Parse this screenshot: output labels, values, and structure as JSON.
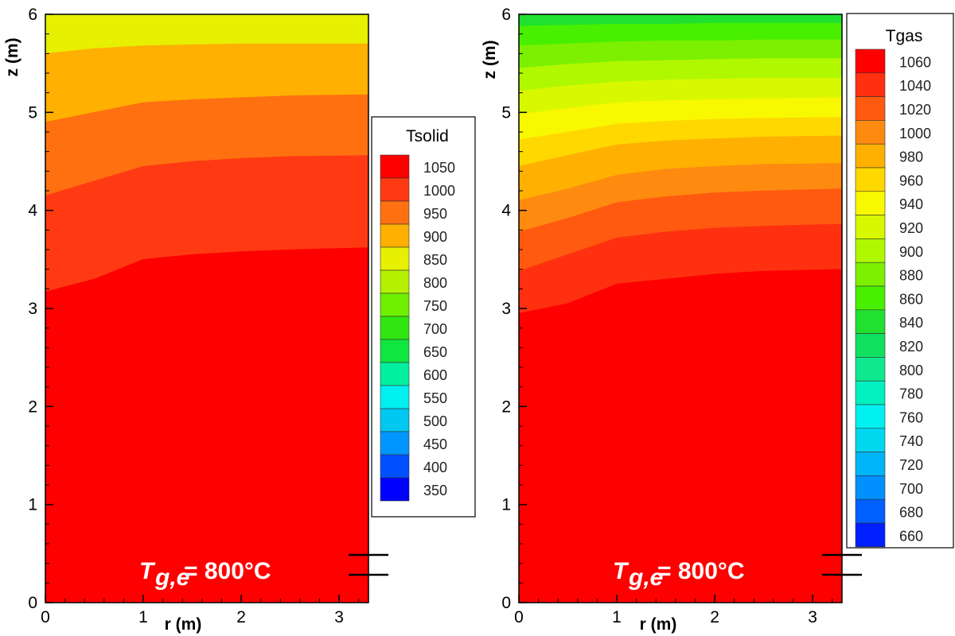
{
  "chart_data": [
    {
      "type": "heatmap",
      "title": "",
      "xlabel": "r (m)",
      "ylabel": "z (m)",
      "xlim": [
        0,
        3.3
      ],
      "ylim": [
        0,
        6
      ],
      "x_ticks": [
        "0",
        "1",
        "2",
        "3"
      ],
      "y_ticks": [
        "0",
        "1",
        "2",
        "3",
        "4",
        "5",
        "6"
      ],
      "legend_title": "Tsolid",
      "legend_placement": "right",
      "legend_levels": [
        1050,
        1000,
        950,
        900,
        850,
        800,
        750,
        700,
        650,
        600,
        550,
        500,
        450,
        400,
        350
      ],
      "legend_colors": [
        "#ff0000",
        "#ff3a12",
        "#ff7010",
        "#ffb000",
        "#e6f000",
        "#b4f000",
        "#6ef000",
        "#30e610",
        "#10e640",
        "#00f0a0",
        "#00f0f0",
        "#00c8f0",
        "#0096ff",
        "#0050ff",
        "#0000ff"
      ],
      "contour_bands": [
        {
          "color": "#ff0000",
          "label": "1050",
          "upper_boundary": [
            [
              0,
              3.17
            ],
            [
              0.5,
              3.3
            ],
            [
              1,
              3.5
            ],
            [
              1.5,
              3.55
            ],
            [
              2,
              3.58
            ],
            [
              2.5,
              3.6
            ],
            [
              3.3,
              3.62
            ]
          ]
        },
        {
          "color": "#ff3a12",
          "label": "1000",
          "upper_boundary": [
            [
              0,
              4.15
            ],
            [
              0.5,
              4.3
            ],
            [
              1,
              4.45
            ],
            [
              1.5,
              4.5
            ],
            [
              2,
              4.53
            ],
            [
              2.5,
              4.55
            ],
            [
              3.3,
              4.56
            ]
          ]
        },
        {
          "color": "#ff7010",
          "label": "950",
          "upper_boundary": [
            [
              0,
              4.9
            ],
            [
              0.5,
              5.0
            ],
            [
              1,
              5.1
            ],
            [
              1.5,
              5.13
            ],
            [
              2,
              5.15
            ],
            [
              2.5,
              5.17
            ],
            [
              3.3,
              5.18
            ]
          ]
        },
        {
          "color": "#ffb000",
          "label": "900",
          "upper_boundary": [
            [
              0,
              5.6
            ],
            [
              0.5,
              5.65
            ],
            [
              1,
              5.68
            ],
            [
              1.5,
              5.69
            ],
            [
              2,
              5.7
            ],
            [
              2.5,
              5.7
            ],
            [
              3.3,
              5.7
            ]
          ]
        },
        {
          "color": "#e6f000",
          "label": "850",
          "upper_boundary": [
            [
              0,
              6
            ],
            [
              3.3,
              6
            ]
          ]
        }
      ],
      "annotation": "T",
      "annotation_sub": "g,e",
      "annotation_value": " = 800°C"
    },
    {
      "type": "heatmap",
      "title": "",
      "xlabel": "r (m)",
      "ylabel": "z (m)",
      "xlim": [
        0,
        3.3
      ],
      "ylim": [
        0,
        6
      ],
      "x_ticks": [
        "0",
        "1",
        "2",
        "3"
      ],
      "y_ticks": [
        "0",
        "1",
        "2",
        "3",
        "4",
        "5",
        "6"
      ],
      "legend_title": "Tgas",
      "legend_placement": "right",
      "legend_levels": [
        1060,
        1040,
        1020,
        1000,
        980,
        960,
        940,
        920,
        900,
        880,
        860,
        840,
        820,
        800,
        780,
        760,
        740,
        720,
        700,
        680,
        660
      ],
      "legend_colors": [
        "#ff0000",
        "#ff3010",
        "#ff5a10",
        "#ff8a10",
        "#ffb000",
        "#ffd800",
        "#f8f800",
        "#d8f800",
        "#b0f800",
        "#7cf000",
        "#48f000",
        "#20e030",
        "#10e060",
        "#10e890",
        "#00f0c0",
        "#00f0f0",
        "#00d8f0",
        "#00b4f8",
        "#0090ff",
        "#0060ff",
        "#0020ff"
      ],
      "contour_bands": [
        {
          "color": "#ff0000",
          "label": "1060",
          "upper_boundary": [
            [
              0,
              2.95
            ],
            [
              0.5,
              3.05
            ],
            [
              1,
              3.25
            ],
            [
              1.5,
              3.3
            ],
            [
              2,
              3.35
            ],
            [
              2.5,
              3.38
            ],
            [
              3.3,
              3.4
            ]
          ]
        },
        {
          "color": "#ff3010",
          "label": "1040",
          "upper_boundary": [
            [
              0,
              3.38
            ],
            [
              0.5,
              3.55
            ],
            [
              1,
              3.72
            ],
            [
              1.5,
              3.78
            ],
            [
              2,
              3.82
            ],
            [
              2.5,
              3.84
            ],
            [
              3.3,
              3.86
            ]
          ]
        },
        {
          "color": "#ff5a10",
          "label": "1020",
          "upper_boundary": [
            [
              0,
              3.78
            ],
            [
              0.5,
              3.92
            ],
            [
              1,
              4.08
            ],
            [
              1.5,
              4.14
            ],
            [
              2,
              4.18
            ],
            [
              2.5,
              4.2
            ],
            [
              3.3,
              4.22
            ]
          ]
        },
        {
          "color": "#ff8a10",
          "label": "1000",
          "upper_boundary": [
            [
              0,
              4.1
            ],
            [
              0.5,
              4.22
            ],
            [
              1,
              4.36
            ],
            [
              1.5,
              4.42
            ],
            [
              2,
              4.45
            ],
            [
              2.5,
              4.47
            ],
            [
              3.3,
              4.48
            ]
          ]
        },
        {
          "color": "#ffb000",
          "label": "980",
          "upper_boundary": [
            [
              0,
              4.45
            ],
            [
              0.5,
              4.56
            ],
            [
              1,
              4.67
            ],
            [
              1.5,
              4.71
            ],
            [
              2,
              4.73
            ],
            [
              2.5,
              4.75
            ],
            [
              3.3,
              4.76
            ]
          ]
        },
        {
          "color": "#ffd800",
          "label": "960",
          "upper_boundary": [
            [
              0,
              4.72
            ],
            [
              0.5,
              4.8
            ],
            [
              1,
              4.88
            ],
            [
              1.5,
              4.91
            ],
            [
              2,
              4.93
            ],
            [
              2.5,
              4.94
            ],
            [
              3.3,
              4.95
            ]
          ]
        },
        {
          "color": "#f8f800",
          "label": "940",
          "upper_boundary": [
            [
              0,
              4.98
            ],
            [
              0.5,
              5.04
            ],
            [
              1,
              5.1
            ],
            [
              1.5,
              5.12
            ],
            [
              2,
              5.13
            ],
            [
              2.5,
              5.14
            ],
            [
              3.3,
              5.15
            ]
          ]
        },
        {
          "color": "#d8f800",
          "label": "920",
          "upper_boundary": [
            [
              0,
              5.22
            ],
            [
              0.5,
              5.27
            ],
            [
              1,
              5.31
            ],
            [
              1.5,
              5.33
            ],
            [
              2,
              5.34
            ],
            [
              2.5,
              5.35
            ],
            [
              3.3,
              5.35
            ]
          ]
        },
        {
          "color": "#b0f800",
          "label": "900",
          "upper_boundary": [
            [
              0,
              5.45
            ],
            [
              0.5,
              5.49
            ],
            [
              1,
              5.52
            ],
            [
              1.5,
              5.53
            ],
            [
              2,
              5.54
            ],
            [
              2.5,
              5.55
            ],
            [
              3.3,
              5.55
            ]
          ]
        },
        {
          "color": "#7cf000",
          "label": "880",
          "upper_boundary": [
            [
              0,
              5.68
            ],
            [
              0.5,
              5.7
            ],
            [
              1,
              5.72
            ],
            [
              1.5,
              5.73
            ],
            [
              2,
              5.73
            ],
            [
              2.5,
              5.74
            ],
            [
              3.3,
              5.74
            ]
          ]
        },
        {
          "color": "#48f000",
          "label": "860",
          "upper_boundary": [
            [
              0,
              5.88
            ],
            [
              0.5,
              5.89
            ],
            [
              1,
              5.9
            ],
            [
              1.5,
              5.9
            ],
            [
              2,
              5.91
            ],
            [
              2.5,
              5.91
            ],
            [
              3.3,
              5.91
            ]
          ]
        },
        {
          "color": "#20e030",
          "label": "840",
          "upper_boundary": [
            [
              0,
              6
            ],
            [
              3.3,
              6
            ]
          ]
        }
      ],
      "annotation": "T",
      "annotation_sub": "g,e",
      "annotation_value": " = 800°C"
    }
  ]
}
